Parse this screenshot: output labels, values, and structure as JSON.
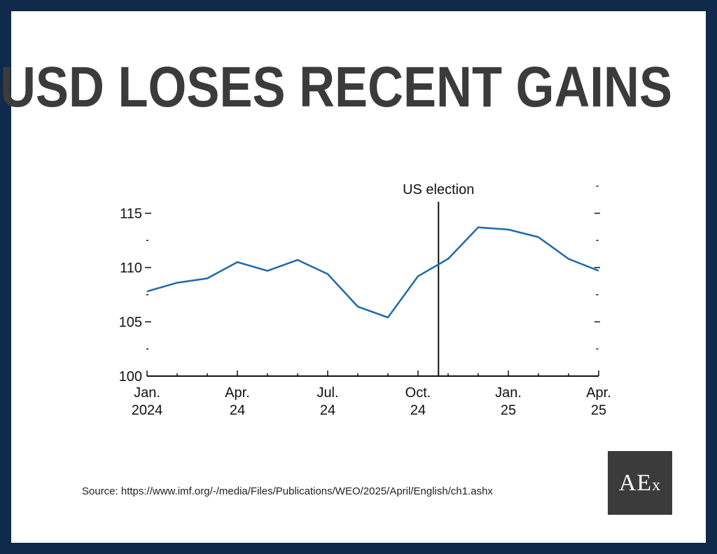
{
  "page": {
    "title": "USD LOSES RECENT GAINS",
    "source": "Source: https://www.imf.org/-/media/Files/Publications/WEO/2025/April/English/ch1.ashx",
    "logo_text": "AEx"
  },
  "colors": {
    "border": "#0f2a4a",
    "line": "#1f6aa8",
    "title": "#3b3b3b",
    "logo_bg": "#3b3b3b"
  },
  "chart_data": {
    "type": "line",
    "title": "",
    "xlabel": "",
    "ylabel": "",
    "ylim": [
      100,
      117.5
    ],
    "y_ticks": [
      {
        "value": 100,
        "label": "100"
      },
      {
        "value": 105,
        "label": "105"
      },
      {
        "value": 110,
        "label": "110"
      },
      {
        "value": 115,
        "label": "115"
      }
    ],
    "x_ticks": [
      {
        "month": 0,
        "line1": "Jan.",
        "line2": "2024"
      },
      {
        "month": 3,
        "line1": "Apr.",
        "line2": "24"
      },
      {
        "month": 6,
        "line1": "Jul.",
        "line2": "24"
      },
      {
        "month": 9,
        "line1": "Oct.",
        "line2": "24"
      },
      {
        "month": 12,
        "line1": "Jan.",
        "line2": "25"
      },
      {
        "month": 15,
        "line1": "Apr.",
        "line2": "25"
      }
    ],
    "series": [
      {
        "x": [
          "2024-01",
          "2024-02",
          "2024-03",
          "2024-04",
          "2024-05",
          "2024-06",
          "2024-07",
          "2024-08",
          "2024-09",
          "2024-10",
          "2024-11",
          "2024-12",
          "2025-01",
          "2025-02",
          "2025-03",
          "2025-04"
        ],
        "values": [
          107.8,
          108.6,
          109.0,
          110.5,
          109.7,
          110.7,
          109.4,
          106.4,
          105.4,
          109.2,
          110.8,
          113.7,
          113.5,
          112.8,
          110.8,
          109.7
        ]
      }
    ],
    "annotations": [
      {
        "label": "US election",
        "x": "2024-11"
      }
    ]
  }
}
